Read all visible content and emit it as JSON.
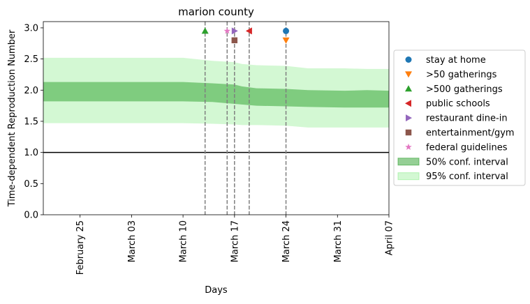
{
  "chart_data": {
    "type": "line",
    "title": "marion county",
    "xlabel": "Days",
    "ylabel": "Time-dependent Reproduction Number",
    "x_range": [
      "2020-02-20",
      "2020-04-07"
    ],
    "ylim": [
      0.0,
      3.1
    ],
    "x_ticks": [
      {
        "date": "2020-02-25",
        "label": "February 25"
      },
      {
        "date": "2020-03-03",
        "label": "March 03"
      },
      {
        "date": "2020-03-10",
        "label": "March 10"
      },
      {
        "date": "2020-03-17",
        "label": "March 17"
      },
      {
        "date": "2020-03-24",
        "label": "March 24"
      },
      {
        "date": "2020-03-31",
        "label": "March 31"
      },
      {
        "date": "2020-04-07",
        "label": "April 07"
      }
    ],
    "y_ticks": [
      0.0,
      0.5,
      1.0,
      1.5,
      2.0,
      2.5,
      3.0
    ],
    "y_tick_labels": [
      "0.0",
      "0.5",
      "1.0",
      "1.5",
      "2.0",
      "2.5",
      "3.0"
    ],
    "reference_line": {
      "y": 1.0,
      "color": "#000000"
    },
    "intervals": {
      "x": [
        "2020-02-20",
        "2020-03-01",
        "2020-03-10",
        "2020-03-14",
        "2020-03-17",
        "2020-03-18",
        "2020-03-20",
        "2020-03-24",
        "2020-03-27",
        "2020-04-01",
        "2020-04-04",
        "2020-04-07"
      ],
      "ci50_low": [
        1.82,
        1.82,
        1.82,
        1.81,
        1.78,
        1.77,
        1.75,
        1.74,
        1.73,
        1.72,
        1.72,
        1.72
      ],
      "ci50_high": [
        2.13,
        2.13,
        2.13,
        2.11,
        2.09,
        2.06,
        2.03,
        2.02,
        2.0,
        1.99,
        2.0,
        1.99
      ],
      "ci95_low": [
        1.47,
        1.47,
        1.47,
        1.46,
        1.45,
        1.44,
        1.44,
        1.43,
        1.4,
        1.4,
        1.4,
        1.4
      ],
      "ci95_high": [
        2.52,
        2.52,
        2.52,
        2.47,
        2.45,
        2.42,
        2.4,
        2.39,
        2.35,
        2.35,
        2.34,
        2.34
      ]
    },
    "interventions": [
      {
        "name": "stay at home",
        "date": "2020-03-24",
        "y": 2.95,
        "marker": "circle",
        "color": "#1f77b4"
      },
      {
        "name": ">50 gatherings",
        "date": "2020-03-24",
        "y": 2.8,
        "marker": "triangle-down",
        "color": "#ff7f0e"
      },
      {
        "name": ">500 gatherings",
        "date": "2020-03-13",
        "y": 2.95,
        "marker": "triangle-up",
        "color": "#2ca02c"
      },
      {
        "name": "public schools",
        "date": "2020-03-19",
        "y": 2.95,
        "marker": "triangle-left",
        "color": "#d62728"
      },
      {
        "name": "restaurant dine-in",
        "date": "2020-03-17",
        "y": 2.95,
        "marker": "triangle-right",
        "color": "#9467bd"
      },
      {
        "name": "entertainment/gym",
        "date": "2020-03-17",
        "y": 2.8,
        "marker": "square",
        "color": "#8c564b"
      },
      {
        "name": "federal guidelines",
        "date": "2020-03-16",
        "y": 2.95,
        "marker": "star",
        "color": "#e377c2"
      }
    ],
    "vertical_lines": [
      "2020-03-13",
      "2020-03-16",
      "2020-03-17",
      "2020-03-19",
      "2020-03-24"
    ],
    "legend": {
      "placement": "right",
      "band_entries": [
        {
          "label": "50% conf. interval",
          "color": "#2ca02c",
          "opacity": 0.5
        },
        {
          "label": "95% conf. interval",
          "color": "#90ee90",
          "opacity": 0.4
        }
      ]
    },
    "grid": false
  }
}
